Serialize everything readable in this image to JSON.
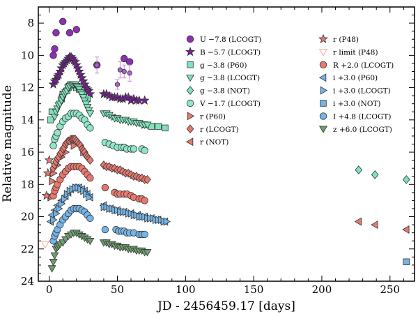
{
  "chart_data": {
    "type": "scatter",
    "xlabel": "JD - 2456459.17 [days]",
    "ylabel": "Relative magnitude",
    "xlim": [
      -8,
      268
    ],
    "ylim": [
      24,
      7
    ],
    "x_ticks": [
      0,
      50,
      100,
      150,
      200,
      250
    ],
    "y_ticks": [
      8,
      10,
      12,
      14,
      16,
      18,
      20,
      22,
      24
    ],
    "y_inverted": true,
    "legend_position": "top-right",
    "series": [
      {
        "name": "U −7.8 (LCOGT)",
        "marker": "circle",
        "color": "#8e2fb3",
        "x": [
          3,
          4,
          5,
          10,
          15,
          20,
          35,
          55,
          59
        ],
        "y": [
          10.0,
          9.6,
          8.6,
          7.9,
          8.6,
          8.4,
          10.6,
          10.2,
          10.4
        ]
      },
      {
        "name": "B −5.7 (LCOGT)",
        "marker": "star",
        "color": "#7a1f9a",
        "x": [
          3,
          4,
          5,
          6,
          7,
          8,
          9,
          10,
          11,
          12,
          13,
          14,
          15,
          16,
          17,
          18,
          19,
          20,
          21,
          22,
          23,
          24,
          25,
          26,
          27,
          28,
          29,
          30,
          40,
          42,
          44,
          46,
          48,
          50,
          52,
          54,
          56,
          58,
          60,
          62,
          64,
          66,
          70
        ],
        "y": [
          11.8,
          11.6,
          11.5,
          11.3,
          11.2,
          11.0,
          10.8,
          10.6,
          10.5,
          10.4,
          10.3,
          10.2,
          10.1,
          10.1,
          10.2,
          10.3,
          10.4,
          10.6,
          10.8,
          11.0,
          11.2,
          11.4,
          11.6,
          11.8,
          12.0,
          12.1,
          12.2,
          12.4,
          12.4,
          12.4,
          12.5,
          12.6,
          12.6,
          12.6,
          12.7,
          12.7,
          12.6,
          12.6,
          12.8,
          12.7,
          12.8,
          12.8,
          12.8
        ]
      },
      {
        "name": "g −3.8 (P60)",
        "marker": "square",
        "color": "#7fe2bc",
        "x": [
          1,
          2,
          9,
          10,
          13,
          14,
          15,
          16,
          18,
          20,
          22,
          25,
          28,
          70,
          75,
          80,
          85
        ],
        "y": [
          14.0,
          13.5,
          12.7,
          12.4,
          12.2,
          12.0,
          11.9,
          11.9,
          11.9,
          12.0,
          12.1,
          12.4,
          12.7,
          14.3,
          14.4,
          14.4,
          14.5
        ]
      },
      {
        "name": "g −3.8 (LCOGT)",
        "marker": "triangle-down",
        "color": "#7fe2bc",
        "x": [
          4,
          5,
          6,
          7,
          8,
          9,
          10,
          11,
          12,
          13,
          14,
          15,
          16,
          17,
          18,
          19,
          20,
          21,
          22,
          23,
          24,
          25,
          26,
          27,
          28,
          29,
          30,
          40,
          42,
          44,
          46,
          48,
          50,
          52,
          54,
          56,
          58,
          60,
          62,
          64,
          66,
          68,
          70,
          72
        ],
        "y": [
          13.8,
          13.5,
          13.3,
          13.1,
          13.0,
          12.8,
          12.6,
          12.4,
          12.3,
          12.2,
          12.0,
          11.9,
          11.8,
          11.8,
          11.8,
          11.8,
          11.9,
          12.0,
          12.1,
          12.3,
          12.4,
          12.6,
          12.8,
          13.0,
          13.2,
          13.4,
          13.6,
          13.6,
          13.6,
          13.7,
          13.8,
          13.9,
          13.9,
          14.0,
          14.0,
          14.0,
          14.1,
          14.1,
          14.1,
          14.2,
          14.2,
          14.3,
          14.3,
          14.3
        ]
      },
      {
        "name": "g −3.8 (NOT)",
        "marker": "diamond",
        "color": "#7fe2bc",
        "x": [
          227,
          239,
          262
        ],
        "y": [
          17.1,
          17.4,
          17.7
        ]
      },
      {
        "name": "V −1.7 (LCOGT)",
        "marker": "circle",
        "color": "#8ee6c6",
        "x": [
          3,
          4,
          5,
          6,
          8,
          10,
          12,
          14,
          16,
          18,
          20,
          22,
          24,
          26,
          28,
          30,
          41,
          44,
          47,
          50,
          53,
          55,
          57,
          60,
          62,
          68,
          70
        ],
        "y": [
          15.6,
          15.2,
          15.0,
          14.8,
          14.4,
          14.1,
          13.9,
          13.8,
          13.6,
          13.6,
          13.6,
          13.7,
          13.9,
          14.0,
          14.3,
          14.5,
          15.4,
          15.5,
          15.6,
          15.7,
          15.7,
          15.7,
          15.8,
          15.8,
          15.8,
          15.8,
          15.9
        ]
      },
      {
        "name": "r (P60)",
        "marker": "triangle-right",
        "color": "#e8786e",
        "x": [
          1,
          2,
          3,
          6,
          9,
          12,
          18,
          25
        ],
        "y": [
          18.8,
          17.8,
          17.3,
          16.8,
          16.3,
          16.0,
          15.6,
          16.0
        ]
      },
      {
        "name": "r (LCOGT)",
        "marker": "diamond",
        "color": "#e8786e",
        "x": [
          3,
          4,
          5,
          6,
          7,
          8,
          9,
          10,
          11,
          12,
          13,
          14,
          15,
          16,
          17,
          18,
          19,
          20,
          21,
          22,
          23,
          24,
          25,
          26,
          27,
          28,
          29,
          30,
          40,
          42,
          44,
          46,
          48,
          50,
          52,
          54,
          56,
          58,
          60,
          62,
          64,
          66,
          68,
          70,
          72
        ],
        "y": [
          17.0,
          16.8,
          16.6,
          16.4,
          16.3,
          16.1,
          16.0,
          15.8,
          15.7,
          15.5,
          15.4,
          15.3,
          15.3,
          15.2,
          15.2,
          15.2,
          15.2,
          15.3,
          15.4,
          15.5,
          15.6,
          15.8,
          15.9,
          16.0,
          16.2,
          16.3,
          16.4,
          16.5,
          16.8,
          16.9,
          16.9,
          17.0,
          17.0,
          17.1,
          17.1,
          17.2,
          17.3,
          17.3,
          17.4,
          17.5,
          17.5,
          17.6,
          17.6,
          17.7,
          17.7
        ]
      },
      {
        "name": "r (NOT)",
        "marker": "triangle-left",
        "color": "#e8786e",
        "x": [
          227,
          239,
          262
        ],
        "y": [
          20.3,
          20.5,
          20.8
        ]
      },
      {
        "name": "r (P48)",
        "marker": "star",
        "color": "#e8786e",
        "x": [
          -2,
          -1,
          0
        ],
        "y": [
          18.7,
          17.3,
          16.5
        ]
      },
      {
        "name": "r limit (P48)",
        "marker": "triangle-down-open",
        "color": "#f2a8a0",
        "x": [
          -3
        ],
        "y": [
          21.7
        ]
      },
      {
        "name": "R +2.0 (LCOGT)",
        "marker": "circle",
        "color": "#e8786e",
        "x": [
          3,
          4,
          5,
          6,
          8,
          10,
          12,
          14,
          16,
          18,
          20,
          22,
          24,
          26,
          28,
          30,
          41,
          48,
          50,
          52,
          55,
          57,
          60,
          62,
          66,
          68,
          70
        ],
        "y": [
          18.7,
          18.4,
          18.2,
          18.0,
          17.7,
          17.4,
          17.2,
          17.0,
          16.9,
          16.9,
          16.9,
          16.9,
          17.0,
          17.2,
          17.4,
          17.6,
          18.2,
          18.5,
          18.6,
          18.6,
          18.6,
          18.6,
          18.7,
          18.8,
          18.9,
          18.9,
          19.0
        ]
      },
      {
        "name": "i +3.0 (P60)",
        "marker": "triangle-left",
        "color": "#74b4e6",
        "x": [
          1,
          2,
          4,
          6,
          9,
          12,
          14,
          16,
          18,
          20,
          22,
          24,
          26,
          28,
          30,
          40,
          45,
          50,
          55,
          60,
          65,
          70,
          75,
          80,
          85
        ],
        "y": [
          20.3,
          19.9,
          19.6,
          19.3,
          19.0,
          18.7,
          18.5,
          18.3,
          18.2,
          18.2,
          18.2,
          18.3,
          18.4,
          18.6,
          18.8,
          19.3,
          19.5,
          19.6,
          19.7,
          19.8,
          19.9,
          20.0,
          20.1,
          20.2,
          20.3
        ]
      },
      {
        "name": "i +3.0 (LCOGT)",
        "marker": "triangle-right",
        "color": "#74b4e6",
        "x": [
          3,
          5,
          7,
          9,
          11,
          13,
          15,
          17,
          19,
          21,
          23,
          25,
          27,
          29,
          40,
          42,
          44,
          46,
          48,
          50,
          52,
          54,
          56,
          58,
          60,
          62,
          64,
          66,
          68,
          70,
          72,
          74,
          76,
          78,
          80,
          82,
          84,
          86
        ],
        "y": [
          20.2,
          19.8,
          19.5,
          19.2,
          18.9,
          18.6,
          18.4,
          18.3,
          18.2,
          18.2,
          18.3,
          18.4,
          18.6,
          18.8,
          19.4,
          19.4,
          19.5,
          19.5,
          19.6,
          19.6,
          19.7,
          19.7,
          19.7,
          19.8,
          19.8,
          19.9,
          19.9,
          20.0,
          20.0,
          20.0,
          20.1,
          20.1,
          20.1,
          20.2,
          20.2,
          20.2,
          20.3,
          20.3
        ]
      },
      {
        "name": "i +3.0 (NOT)",
        "marker": "square",
        "color": "#74b4e6",
        "x": [
          262
        ],
        "y": [
          22.8
        ]
      },
      {
        "name": "I +4.8 (LCOGT)",
        "marker": "circle",
        "color": "#74b4e6",
        "x": [
          3,
          4,
          5,
          6,
          8,
          10,
          12,
          14,
          16,
          18,
          20,
          22,
          24,
          26,
          28,
          30,
          41,
          49,
          51,
          53,
          55,
          57,
          59,
          62,
          66,
          68,
          70
        ],
        "y": [
          21.5,
          21.2,
          21.0,
          20.8,
          20.5,
          20.2,
          20.0,
          19.8,
          19.6,
          19.5,
          19.5,
          19.5,
          19.6,
          19.7,
          19.9,
          20.1,
          20.8,
          20.8,
          20.9,
          20.9,
          20.9,
          21.0,
          21.0,
          21.0,
          21.1,
          21.1,
          21.1
        ]
      },
      {
        "name": "z +6.0 (LCOGT)",
        "marker": "triangle-down",
        "color": "#6f9e6f",
        "x": [
          2,
          3,
          4,
          5,
          6,
          7,
          8,
          10,
          12,
          14,
          16,
          18,
          20,
          22,
          24,
          26,
          28,
          30,
          40,
          42,
          44,
          46,
          48,
          50,
          52,
          54,
          56,
          58,
          60,
          62,
          64,
          66,
          68,
          70,
          72
        ],
        "y": [
          23.2,
          22.8,
          22.4,
          22.0,
          21.9,
          21.8,
          21.7,
          21.6,
          21.4,
          21.2,
          21.1,
          21.0,
          21.0,
          21.1,
          21.2,
          21.3,
          21.4,
          21.5,
          21.6,
          21.6,
          21.7,
          21.7,
          21.8,
          21.8,
          21.9,
          21.9,
          21.9,
          22.0,
          22.0,
          22.0,
          22.1,
          22.1,
          22.1,
          22.2,
          22.2
        ]
      }
    ],
    "error_bars": [
      {
        "series": "B −5.7 (LCOGT)",
        "x": 35,
        "y": 10.6,
        "err": 0.5
      },
      {
        "series": "B −5.7 (LCOGT)",
        "x": 52,
        "y": 10.9,
        "err": 0.5
      },
      {
        "series": "B −5.7 (LCOGT)",
        "x": 55,
        "y": 11.0,
        "err": 0.4
      },
      {
        "series": "B −5.7 (LCOGT)",
        "x": 59,
        "y": 11.1,
        "err": 0.5
      },
      {
        "series": "B −5.7 (LCOGT)",
        "x": 50,
        "y": 11.8,
        "err": 0.3
      }
    ]
  }
}
